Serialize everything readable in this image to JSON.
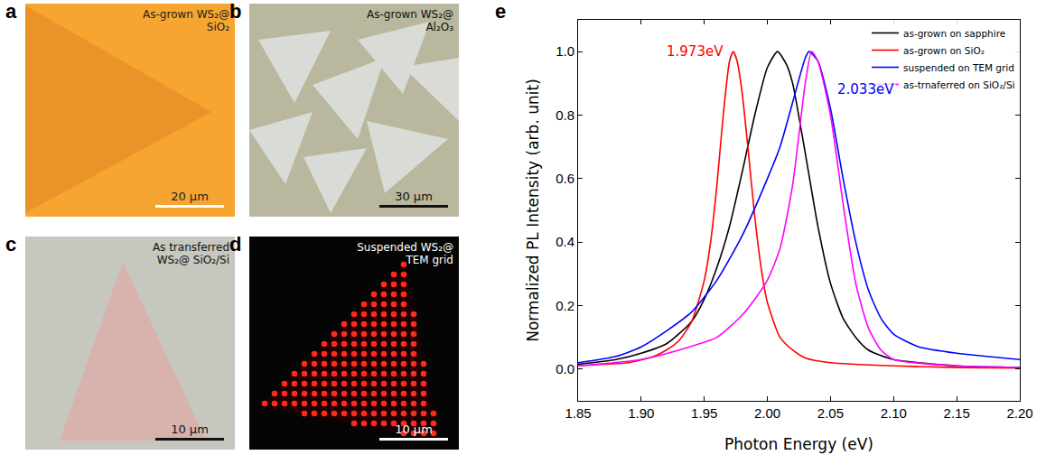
{
  "panels": [
    {
      "letter": "a",
      "label": "As-grown WS₂@ SiO₂",
      "scale_bar": "20 µm"
    },
    {
      "letter": "b",
      "label": "As-grown WS₂@ Al₂O₃",
      "scale_bar": "30 µm"
    },
    {
      "letter": "c",
      "label": "As transferred WS₂@ SiO₂/Si",
      "scale_bar": "10 µm"
    },
    {
      "letter": "d",
      "label": "Suspended WS₂@ TEM grid",
      "scale_bar": "10 µm"
    }
  ],
  "chart_letter": "e",
  "chart_data": {
    "type": "line",
    "x_label": "Photon Energy (eV)",
    "y_label": "Normalized PL Intensity (arb. unit)",
    "xlim": [
      1.85,
      2.2
    ],
    "xticks": [
      1.85,
      {
        "value": 1.9,
        "label": "1.90"
      },
      1.95,
      {
        "value": 2.0,
        "label": "2.00"
      },
      2.05,
      {
        "value": 2.1,
        "label": "2.10"
      },
      2.15,
      {
        "value": 2.2,
        "label": "2.20"
      }
    ],
    "ylim": [
      -0.1,
      1.1
    ],
    "yticks": [
      {
        "value": 0,
        "label": "0.0"
      },
      0.2,
      0.4,
      0.6,
      0.8,
      {
        "value": 1,
        "label": "1.0"
      }
    ],
    "grid": false,
    "legend": "upper right",
    "series": [
      {
        "name": "as-grown on sapphire",
        "color": "#000000",
        "x": [
          1.85,
          1.88,
          1.9,
          1.92,
          1.94,
          1.95,
          1.96,
          1.97,
          1.98,
          1.99,
          2.0,
          2.008,
          2.015,
          2.02,
          2.03,
          2.04,
          2.05,
          2.06,
          2.07,
          2.08,
          2.1,
          2.15,
          2.2
        ],
        "values": [
          0.015,
          0.03,
          0.05,
          0.08,
          0.15,
          0.22,
          0.32,
          0.45,
          0.62,
          0.8,
          0.95,
          1.0,
          0.96,
          0.9,
          0.68,
          0.45,
          0.27,
          0.16,
          0.1,
          0.06,
          0.03,
          0.01,
          0.005
        ]
      },
      {
        "name": "as-grown on SiO₂",
        "color": "#ff0000",
        "x": [
          1.85,
          1.87,
          1.89,
          1.91,
          1.92,
          1.93,
          1.94,
          1.95,
          1.955,
          1.96,
          1.965,
          1.97,
          1.973,
          1.976,
          1.98,
          1.985,
          1.99,
          1.995,
          2.0,
          2.01,
          2.02,
          2.03,
          2.05,
          2.1,
          2.15,
          2.2
        ],
        "values": [
          0.01,
          0.015,
          0.02,
          0.04,
          0.06,
          0.09,
          0.15,
          0.28,
          0.4,
          0.58,
          0.8,
          0.97,
          1.0,
          0.97,
          0.87,
          0.68,
          0.48,
          0.32,
          0.21,
          0.1,
          0.06,
          0.035,
          0.02,
          0.01,
          0.005,
          0.003
        ]
      },
      {
        "name": "suspended on TEM grid",
        "color": "#0000ff",
        "x": [
          1.85,
          1.88,
          1.9,
          1.92,
          1.94,
          1.96,
          1.98,
          2.0,
          2.01,
          2.02,
          2.03,
          2.033,
          2.04,
          2.05,
          2.06,
          2.07,
          2.08,
          2.09,
          2.1,
          2.12,
          2.15,
          2.2
        ],
        "values": [
          0.02,
          0.04,
          0.07,
          0.12,
          0.18,
          0.28,
          0.42,
          0.6,
          0.7,
          0.84,
          0.98,
          1.0,
          0.97,
          0.82,
          0.6,
          0.4,
          0.25,
          0.16,
          0.11,
          0.07,
          0.05,
          0.03
        ]
      },
      {
        "name": "as-trnaferred on SiO₂/Si",
        "color": "#ff00ff",
        "x": [
          1.85,
          1.9,
          1.93,
          1.96,
          1.98,
          1.99,
          2.0,
          2.01,
          2.02,
          2.03,
          2.035,
          2.04,
          2.05,
          2.06,
          2.07,
          2.08,
          2.09,
          2.1,
          2.15,
          2.2
        ],
        "values": [
          0.01,
          0.03,
          0.06,
          0.1,
          0.17,
          0.22,
          0.28,
          0.38,
          0.58,
          0.9,
          1.0,
          0.97,
          0.8,
          0.52,
          0.27,
          0.13,
          0.06,
          0.03,
          0.01,
          0.005
        ]
      }
    ],
    "annotations": [
      {
        "text": "1.973eV",
        "x": 1.943,
        "y": 1.0,
        "color": "#ff0000"
      },
      {
        "text": "2.033eV",
        "x": 2.078,
        "y": 0.88,
        "color": "#0000ff"
      }
    ]
  }
}
